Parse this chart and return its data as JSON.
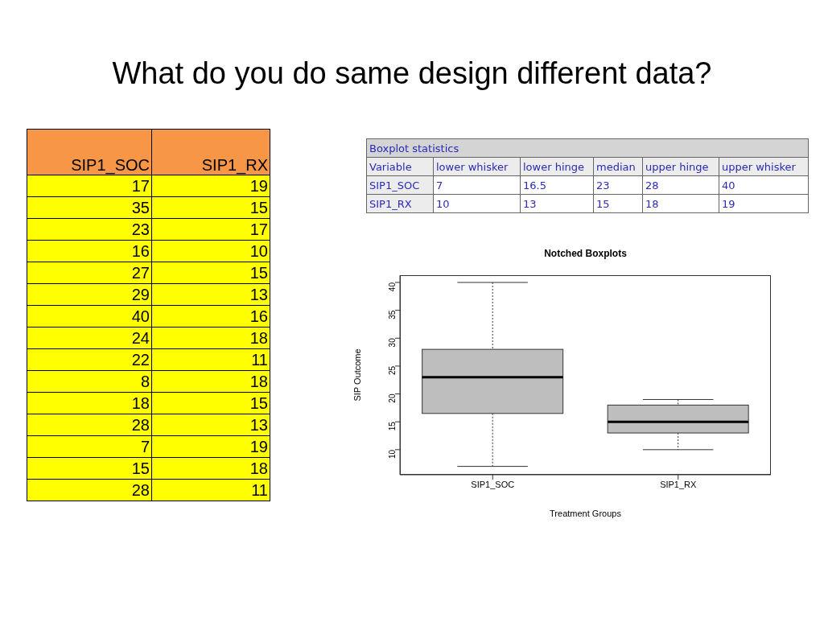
{
  "chart_data": [
    {
      "type": "other",
      "title": "What do you do same design different data?",
      "annotations": [
        "SIP1_SOC",
        "SIP1_RX",
        "17",
        "19",
        "35",
        "15",
        "23",
        "17",
        "16",
        "10",
        "27",
        "15",
        "29",
        "13",
        "40",
        "16",
        "24",
        "18",
        "22",
        "11",
        "8",
        "18",
        "18",
        "15",
        "28",
        "13",
        "7",
        "19",
        "15",
        "18",
        "28",
        "11"
      ]
    },
    {
      "type": "box",
      "title": "Notched Boxplots",
      "xlabel": "Treatment Groups",
      "ylabel": "SIP Outcome",
      "categories": [
        "SIP1_SOC",
        "SIP1_RX"
      ],
      "color": "#bebebe",
      "boxes": [
        {
          "low": 7,
          "q1": 16.5,
          "median": 23,
          "q3": 28,
          "high": 40
        },
        {
          "low": 10,
          "q1": 13,
          "median": 15,
          "q3": 18,
          "high": 19
        }
      ],
      "ylim": [
        5.5,
        41.3
      ],
      "yticks": [
        10,
        15,
        20,
        25,
        30,
        35,
        40
      ]
    },
    {
      "type": "other",
      "annotations": [
        "Boxplot statistics",
        "Variable",
        "lower whisker",
        "lower hinge",
        "median",
        "upper hinge",
        "upper whisker",
        "SIP1_SOC",
        "7",
        "16.5",
        "23",
        "28",
        "40",
        "SIP1_RX",
        "10",
        "13",
        "15",
        "18",
        "19"
      ]
    }
  ]
}
